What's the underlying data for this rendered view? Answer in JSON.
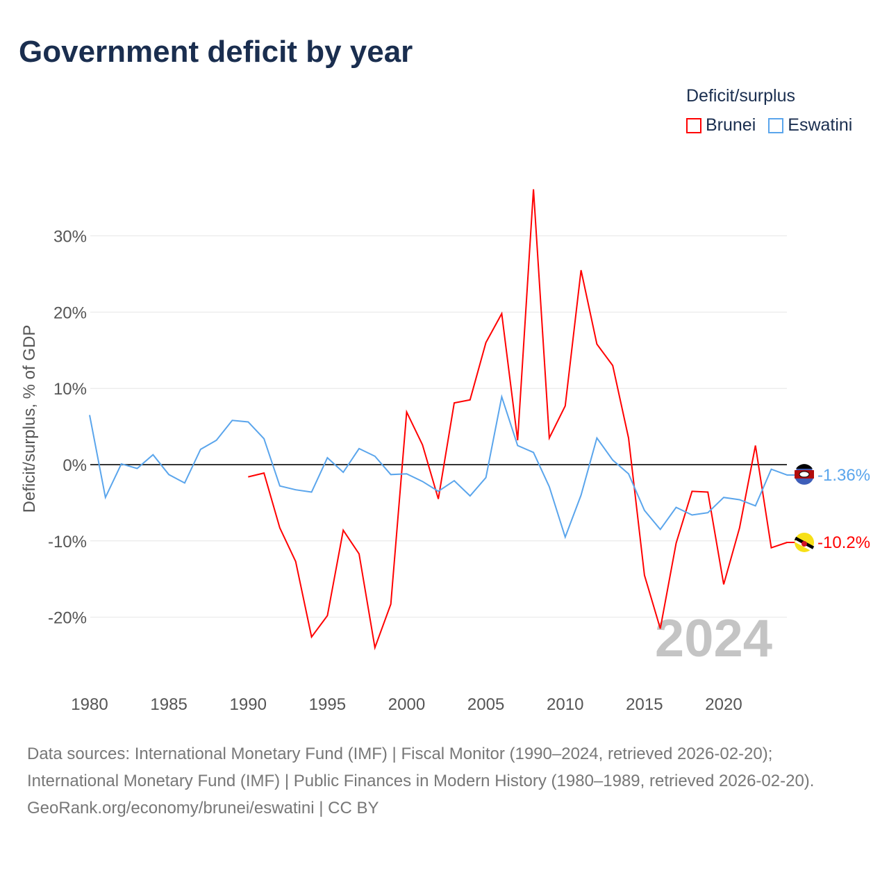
{
  "title": "Government deficit by year",
  "legend": {
    "title": "Deficit/surplus",
    "items": [
      "Brunei",
      "Eswatini"
    ]
  },
  "colors": {
    "Brunei": "#ff0000",
    "Eswatini": "#5aa5ec"
  },
  "year_watermark": "2024",
  "sources": [
    "Data sources: International Monetary Fund (IMF) | Fiscal Monitor (1990–2024, retrieved 2026-02-20); International Monetary Fund (IMF) | Public Finances in Modern History (1980–1989, retrieved 2026-02-20).",
    "GeoRank.org/economy/brunei/eswatini | CC BY"
  ],
  "chart_data": {
    "type": "line",
    "title": "Government deficit by year",
    "xlabel": "",
    "ylabel": "Deficit/surplus, % of GDP",
    "xlim": [
      1980,
      2024
    ],
    "ylim": [
      -28,
      37
    ],
    "xticks": [
      1980,
      1985,
      1990,
      1995,
      2000,
      2005,
      2010,
      2015,
      2020
    ],
    "yticks": [
      -20,
      -10,
      0,
      10,
      20,
      30
    ],
    "ytick_labels": [
      "-20%",
      "-10%",
      "0%",
      "10%",
      "20%",
      "30%"
    ],
    "grid": true,
    "legend_position": "top-right",
    "series": [
      {
        "name": "Brunei",
        "end_label": "-10.2%",
        "x_start": 1990,
        "values": [
          -1.6,
          -1.1,
          -8.3,
          -12.7,
          -22.6,
          -19.8,
          -8.6,
          -11.7,
          -24.0,
          -18.3,
          6.9,
          2.6,
          -4.5,
          8.1,
          8.5,
          16.0,
          19.8,
          3.2,
          36.1,
          3.5,
          7.7,
          25.5,
          15.8,
          13.0,
          3.5,
          -14.5,
          -21.5,
          -10.3,
          -3.5,
          -3.6,
          -15.7,
          -8.3,
          2.5,
          -10.9,
          -10.2
        ]
      },
      {
        "name": "Eswatini",
        "end_label": "-1.36%",
        "x_start": 1980,
        "values": [
          6.5,
          -4.3,
          0.1,
          -0.5,
          1.3,
          -1.3,
          -2.4,
          2.0,
          3.2,
          5.8,
          5.6,
          3.4,
          -2.8,
          -3.3,
          -3.6,
          0.9,
          -1.0,
          2.1,
          1.1,
          -1.3,
          -1.2,
          -2.2,
          -3.5,
          -2.1,
          -4.1,
          -1.7,
          8.9,
          2.5,
          1.6,
          -2.9,
          -9.5,
          -4.0,
          3.5,
          0.6,
          -1.2,
          -6.0,
          -8.5,
          -5.6,
          -6.6,
          -6.3,
          -4.3,
          -4.6,
          -5.4,
          -0.6,
          -1.36
        ]
      }
    ]
  }
}
